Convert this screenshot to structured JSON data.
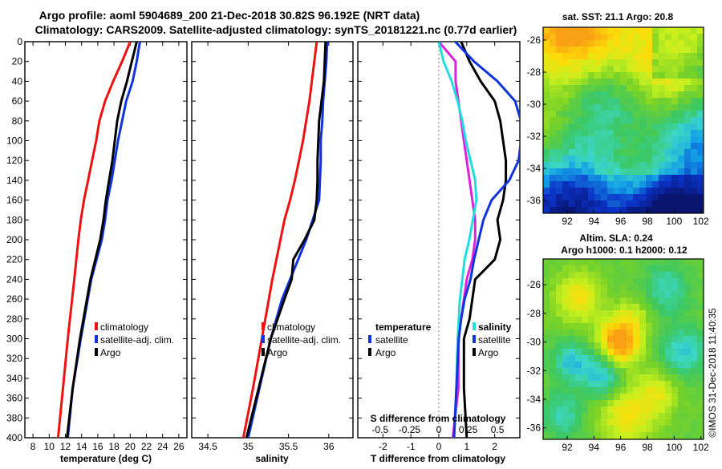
{
  "title_line1": "Argo profile: aoml 5904689_200 21-Dec-2018 30.82S 96.192E (NRT data)",
  "title_line2": "Climatology: CARS2009. Satellite-adjusted climatology: synTS_20181221.nc (0.77d earlier)",
  "colors": {
    "climatology": "#ee1111",
    "satellite": "#1133dd",
    "argo": "#000000",
    "t_satellite": "#dd22dd",
    "s_satellite": "#22dddd"
  },
  "chart_data": [
    {
      "type": "line",
      "name": "temperature",
      "xlabel": "temperature (deg C)",
      "ylabel": "",
      "xlim": [
        7,
        27
      ],
      "ylim": [
        400,
        0
      ],
      "xticks": [
        8,
        10,
        12,
        14,
        16,
        18,
        20,
        22,
        24,
        26
      ],
      "yticks": [
        0,
        20,
        40,
        60,
        80,
        100,
        120,
        140,
        160,
        180,
        200,
        220,
        240,
        260,
        280,
        300,
        320,
        340,
        360,
        380,
        400
      ],
      "legend": [
        "climatology",
        "satellite-adj. clim.",
        "Argo"
      ],
      "series": [
        {
          "name": "climatology",
          "color": "#ee1111",
          "depth": [
            0,
            20,
            40,
            60,
            80,
            100,
            120,
            140,
            160,
            180,
            200,
            240,
            300,
            350,
            400
          ],
          "values": [
            20.0,
            19.0,
            17.9,
            16.9,
            16.2,
            15.8,
            15.3,
            14.8,
            14.3,
            13.9,
            13.6,
            13.1,
            12.3,
            11.7,
            11.1
          ]
        },
        {
          "name": "satellite-adj. clim.",
          "color": "#1133dd",
          "depth": [
            0,
            10,
            20,
            40,
            60,
            80,
            100,
            120,
            140,
            160,
            180,
            200,
            240,
            300,
            350,
            400
          ],
          "values": [
            21.2,
            21.0,
            20.8,
            20.3,
            19.5,
            19.0,
            18.5,
            18.1,
            17.7,
            17.2,
            16.9,
            16.5,
            15.2,
            13.9,
            12.9,
            12.3
          ]
        },
        {
          "name": "Argo",
          "color": "#000000",
          "depth": [
            0,
            10,
            20,
            40,
            60,
            80,
            100,
            120,
            140,
            160,
            180,
            200,
            240,
            300,
            350,
            400
          ],
          "values": [
            20.8,
            20.5,
            20.2,
            19.6,
            18.9,
            18.4,
            18.1,
            17.8,
            17.4,
            17.0,
            16.7,
            16.3,
            15.1,
            13.8,
            12.9,
            12.2
          ]
        }
      ]
    },
    {
      "type": "line",
      "name": "salinity",
      "xlabel": "salinity",
      "ylabel": "",
      "xlim": [
        34.3,
        36.3
      ],
      "ylim": [
        400,
        0
      ],
      "xticks": [
        34.5,
        35,
        35.5,
        36
      ],
      "yticks": [],
      "legend": [
        "climatology",
        "satellite-adj. clim.",
        "Argo"
      ],
      "series": [
        {
          "name": "climatology",
          "color": "#ee1111",
          "depth": [
            0,
            20,
            40,
            60,
            80,
            100,
            120,
            140,
            160,
            180,
            200,
            240,
            300,
            350,
            400
          ],
          "values": [
            35.85,
            35.82,
            35.79,
            35.76,
            35.72,
            35.68,
            35.63,
            35.58,
            35.52,
            35.45,
            35.4,
            35.3,
            35.17,
            35.06,
            34.94
          ]
        },
        {
          "name": "satellite-adj. clim.",
          "color": "#1133dd",
          "depth": [
            0,
            20,
            40,
            60,
            80,
            100,
            120,
            140,
            160,
            180,
            200,
            220,
            240,
            260,
            300,
            350,
            400
          ],
          "values": [
            35.98,
            35.97,
            35.95,
            35.93,
            35.92,
            35.9,
            35.9,
            35.89,
            35.88,
            35.8,
            35.72,
            35.62,
            35.52,
            35.42,
            35.28,
            35.14,
            35.0
          ]
        },
        {
          "name": "Argo",
          "color": "#000000",
          "depth": [
            0,
            20,
            40,
            60,
            80,
            100,
            120,
            140,
            160,
            180,
            200,
            220,
            240,
            260,
            300,
            350,
            400
          ],
          "values": [
            35.96,
            35.95,
            35.94,
            35.91,
            35.88,
            35.87,
            35.86,
            35.86,
            35.85,
            35.82,
            35.7,
            35.56,
            35.54,
            35.45,
            35.28,
            35.13,
            34.98
          ]
        }
      ]
    },
    {
      "type": "line",
      "name": "difference",
      "xlabel": "T difference from climatology",
      "top_xlabel": "S difference from climatology",
      "xlim": [
        -2.9,
        2.9
      ],
      "ylim": [
        400,
        0
      ],
      "xticks": [
        -2,
        -1,
        0,
        1,
        2
      ],
      "top_xticks": [
        -0.5,
        -0.25,
        0,
        0.25,
        0.5
      ],
      "yticks": [],
      "legend_left": [
        "temperature",
        "satellite",
        "Argo"
      ],
      "legend_right": [
        "salinity",
        "satellite",
        "Argo"
      ],
      "series": [
        {
          "name": "temperature satellite",
          "color": "#dd22dd",
          "depth": [
            0,
            20,
            40,
            60,
            80,
            100,
            120,
            140,
            160,
            180,
            200,
            220,
            240,
            260,
            280,
            300,
            350,
            400
          ],
          "values": [
            0.0,
            0.6,
            0.6,
            0.7,
            0.8,
            0.9,
            1.0,
            1.1,
            1.2,
            1.3,
            1.3,
            1.2,
            1.0,
            0.9,
            0.8,
            0.7,
            0.7,
            0.5
          ]
        },
        {
          "name": "temperature Argo",
          "color": "#000000",
          "depth": [
            0,
            20,
            40,
            60,
            80,
            100,
            120,
            140,
            160,
            180,
            200,
            220,
            240,
            260,
            280,
            300,
            350,
            400
          ],
          "values": [
            0.8,
            1.1,
            1.5,
            2.0,
            2.2,
            2.3,
            2.4,
            2.4,
            2.3,
            2.1,
            2.2,
            2.0,
            1.3,
            1.2,
            1.1,
            0.9,
            0.9,
            1.0
          ]
        },
        {
          "name": "salinity satellite",
          "color": "#22dddd",
          "depth": [
            0,
            20,
            40,
            60,
            80,
            100,
            120,
            140,
            160,
            180,
            200,
            220,
            240,
            260,
            280,
            300,
            350,
            400
          ],
          "values": [
            0.0,
            0.04,
            0.11,
            0.16,
            0.2,
            0.23,
            0.27,
            0.31,
            0.32,
            0.29,
            0.26,
            0.22,
            0.2,
            0.18,
            0.17,
            0.16,
            0.15,
            0.13
          ]
        },
        {
          "name": "salinity Argo",
          "color": "#1133dd",
          "depth": [
            0,
            20,
            40,
            60,
            80,
            100,
            120,
            140,
            160,
            180,
            200,
            220,
            240,
            260,
            280,
            300,
            350,
            400
          ],
          "values": [
            0.14,
            0.3,
            0.5,
            0.65,
            0.7,
            0.7,
            0.68,
            0.6,
            0.45,
            0.38,
            0.34,
            0.3,
            0.27,
            0.22,
            0.19,
            0.17,
            0.15,
            0.13
          ]
        }
      ]
    },
    {
      "type": "heatmap",
      "name": "sst map",
      "title": "sat. SST: 21.1 Argo: 20.8",
      "xlim": [
        90.2,
        102.2
      ],
      "ylim": [
        -36.8,
        -25.2
      ],
      "xticks": [
        92,
        94,
        96,
        98,
        100,
        102
      ],
      "yticks": [
        -26,
        -28,
        -30,
        -32,
        -34,
        -36
      ]
    },
    {
      "type": "heatmap",
      "name": "altimetry map",
      "title": "Altim. SLA: 0.24",
      "subtitle": "Argo h1000: 0.1 h2000: 0.12",
      "xlim": [
        90.2,
        102.2
      ],
      "ylim": [
        -36.8,
        -24.2
      ],
      "xticks": [
        92,
        94,
        96,
        98,
        100,
        102
      ],
      "yticks": [
        -26,
        -28,
        -30,
        -32,
        -34,
        -36
      ]
    }
  ],
  "footer": "©IMOS 31-Dec-2018 11:40:35"
}
